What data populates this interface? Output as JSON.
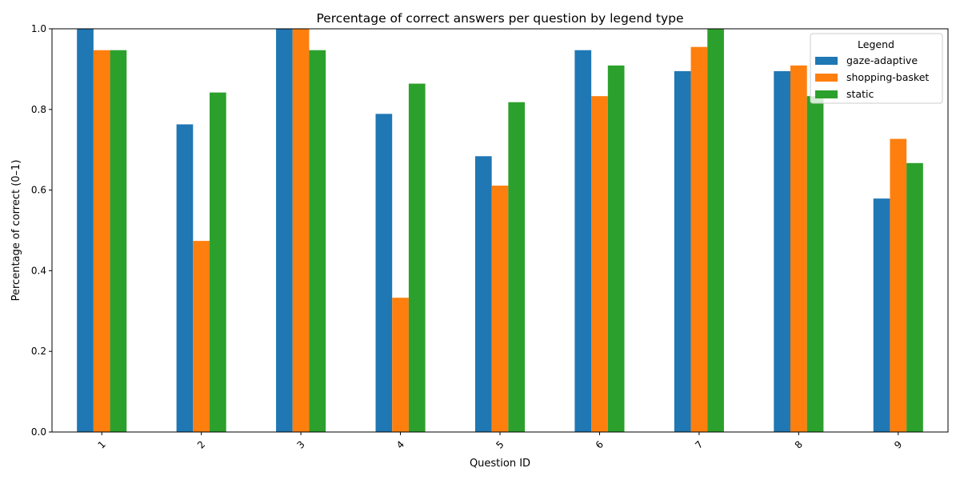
{
  "chart_data": {
    "type": "bar",
    "title": "Percentage of correct answers per question by legend type",
    "xlabel": "Question ID",
    "ylabel": "Percentage of correct (0–1)",
    "ylim": [
      0,
      1.0
    ],
    "yticks": [
      "0.0",
      "0.2",
      "0.4",
      "0.6",
      "0.8",
      "1.0"
    ],
    "categories": [
      "1",
      "2",
      "3",
      "4",
      "5",
      "6",
      "7",
      "8",
      "9"
    ],
    "grid": false,
    "legend": {
      "title": "Legend",
      "placement": "top-right"
    },
    "series": [
      {
        "name": "gaze-adaptive",
        "color": "#1f77b4",
        "values": [
          1.0,
          0.763,
          1.0,
          0.789,
          0.684,
          0.947,
          0.895,
          0.895,
          0.579
        ]
      },
      {
        "name": "shopping-basket",
        "color": "#ff7f0e",
        "values": [
          0.947,
          0.474,
          1.0,
          0.333,
          0.611,
          0.833,
          0.955,
          0.909,
          0.727
        ]
      },
      {
        "name": "static",
        "color": "#2ca02c",
        "values": [
          0.947,
          0.842,
          0.947,
          0.864,
          0.818,
          0.909,
          1.0,
          0.833,
          0.667
        ]
      }
    ]
  }
}
